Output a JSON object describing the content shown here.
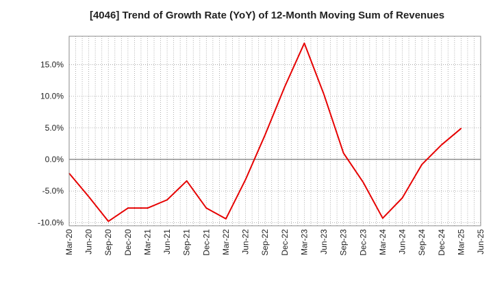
{
  "chart_data": {
    "type": "line",
    "title": "[4046]  Trend of Growth Rate (YoY) of 12-Month Moving Sum of Revenues",
    "xlabel": "",
    "ylabel": "",
    "x": [
      "Mar-20",
      "Jun-20",
      "Sep-20",
      "Dec-20",
      "Mar-21",
      "Jun-21",
      "Sep-21",
      "Dec-21",
      "Mar-22",
      "Jun-22",
      "Sep-22",
      "Dec-22",
      "Mar-23",
      "Jun-23",
      "Sep-23",
      "Dec-23",
      "Mar-24",
      "Jun-24",
      "Sep-24",
      "Dec-24",
      "Mar-25",
      "Jun-25"
    ],
    "series": [
      {
        "color": "#e60000",
        "values": [
          -2.2,
          -5.9,
          -9.8,
          -7.7,
          -7.7,
          -6.4,
          -3.4,
          -7.7,
          -9.4,
          -3.2,
          3.9,
          11.5,
          18.4,
          10.3,
          1.0,
          -3.6,
          -9.3,
          -6.1,
          -0.8,
          2.3,
          4.9,
          null
        ]
      }
    ],
    "yticks": [
      -10,
      -5,
      0,
      5,
      10,
      15
    ],
    "ytick_labels": [
      "-10.0%",
      "-5.0%",
      "0.0%",
      "5.0%",
      "10.0%",
      "15.0%"
    ],
    "ylim": [
      -10.5,
      19.5
    ],
    "grid": true,
    "zero_line": true
  }
}
